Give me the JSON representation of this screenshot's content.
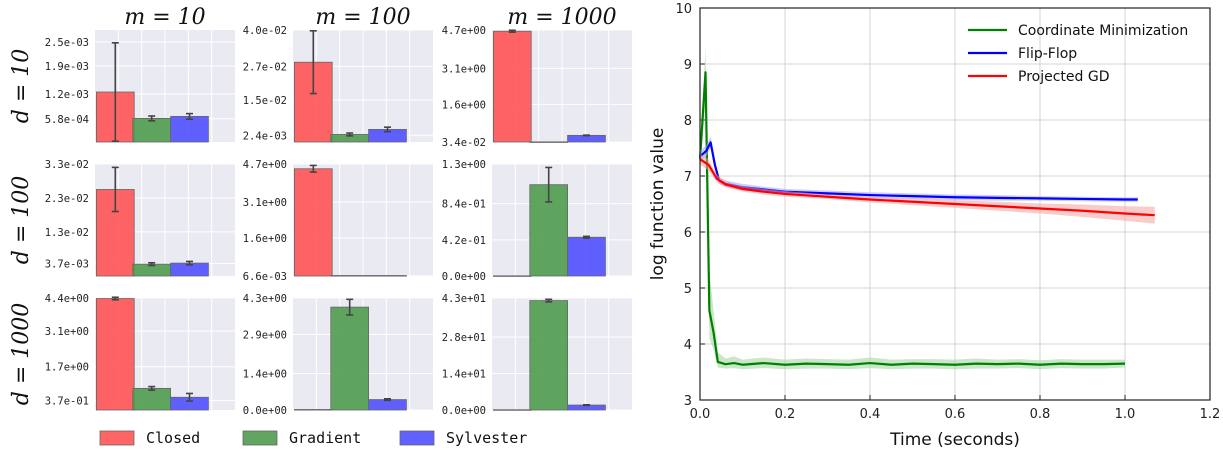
{
  "chart_data": [
    {
      "type": "bar",
      "layout": "3x3 grid of small multiples",
      "column_titles": [
        "m = 10",
        "m = 100",
        "m = 1000"
      ],
      "row_titles": [
        "d = 10",
        "d = 100",
        "d = 1000"
      ],
      "categories": [
        "Closed",
        "Gradient",
        "Sylvester"
      ],
      "colors": [
        "#ff5050",
        "#4a9a4a",
        "#4b4bff"
      ],
      "legend": {
        "placement": "bottom",
        "labels": [
          "Closed",
          "Gradient",
          "Sylvester"
        ]
      },
      "grid": true,
      "panels": [
        {
          "row": 0,
          "col": 0,
          "ylim": [
            0,
            0.0028
          ],
          "ytick_values": [
            0.00058,
            0.0012,
            0.0019,
            0.0025
          ],
          "ytick_labels": [
            "5.8e-04",
            "1.2e-03",
            "1.9e-03",
            "2.5e-03"
          ],
          "values": [
            0.00125,
            0.00059,
            0.00064
          ],
          "errors": [
            0.00123,
            6e-05,
            7e-05
          ]
        },
        {
          "row": 0,
          "col": 1,
          "ylim": [
            0,
            0.04
          ],
          "ytick_values": [
            0.0024,
            0.015,
            0.027,
            0.04
          ],
          "ytick_labels": [
            "2.4e-03",
            "1.5e-02",
            "2.7e-02",
            "4.0e-02"
          ],
          "values": [
            0.0285,
            0.0027,
            0.0045
          ],
          "errors": [
            0.0112,
            0.0005,
            0.0008
          ]
        },
        {
          "row": 0,
          "col": 2,
          "ylim": [
            0.034,
            4.7
          ],
          "ytick_values": [
            0.034,
            1.6,
            3.1,
            4.7
          ],
          "ytick_labels": [
            "3.4e-02",
            "1.6e+00",
            "3.1e+00",
            "4.7e+00"
          ],
          "values": [
            4.65,
            0.04,
            0.31
          ],
          "errors": [
            0.04,
            0.0,
            0.01
          ]
        },
        {
          "row": 1,
          "col": 0,
          "ylim": [
            0,
            0.033
          ],
          "ytick_values": [
            0.0037,
            0.013,
            0.023,
            0.033
          ],
          "ytick_labels": [
            "3.7e-03",
            "1.3e-02",
            "2.3e-02",
            "3.3e-02"
          ],
          "values": [
            0.0255,
            0.0035,
            0.0038
          ],
          "errors": [
            0.0065,
            0.0004,
            0.0005
          ]
        },
        {
          "row": 1,
          "col": 1,
          "ylim": [
            0,
            4.7
          ],
          "ytick_values": [
            0.0066,
            1.6,
            3.1,
            4.7
          ],
          "ytick_labels": [
            "6.6e-03",
            "1.6e+00",
            "3.1e+00",
            "4.7e+00"
          ],
          "values": [
            4.5,
            0.02,
            0.02
          ],
          "errors": [
            0.14,
            0.0,
            0.0
          ]
        },
        {
          "row": 1,
          "col": 2,
          "ylim": [
            0,
            1.3
          ],
          "ytick_values": [
            0.0,
            0.42,
            0.84,
            1.3
          ],
          "ytick_labels": [
            "0.0e+00",
            "4.2e-01",
            "8.4e-01",
            "1.3e+00"
          ],
          "values": [
            0.002,
            1.06,
            0.45
          ],
          "errors": [
            0.0,
            0.2,
            0.01
          ]
        },
        {
          "row": 2,
          "col": 0,
          "ylim": [
            0,
            4.4
          ],
          "ytick_values": [
            0.37,
            1.7,
            3.1,
            4.4
          ],
          "ytick_labels": [
            "3.7e-01",
            "1.7e+00",
            "3.1e+00",
            "4.4e+00"
          ],
          "values": [
            4.38,
            0.85,
            0.5
          ],
          "errors": [
            0.05,
            0.07,
            0.15
          ]
        },
        {
          "row": 2,
          "col": 1,
          "ylim": [
            0,
            4.3
          ],
          "ytick_values": [
            0.0,
            1.4,
            2.9,
            4.3
          ],
          "ytick_labels": [
            "0.0e+00",
            "1.4e+00",
            "2.9e+00",
            "4.3e+00"
          ],
          "values": [
            0.02,
            3.95,
            0.4
          ],
          "errors": [
            0.0,
            0.3,
            0.03
          ]
        },
        {
          "row": 2,
          "col": 2,
          "ylim": [
            0,
            43
          ],
          "ytick_values": [
            0.0,
            14.0,
            28.0,
            43.0
          ],
          "ytick_labels": [
            "0.0e+00",
            "1.4e+01",
            "2.8e+01",
            "4.3e+01"
          ],
          "values": [
            0.1,
            42.0,
            1.9
          ],
          "errors": [
            0.0,
            0.5,
            0.1
          ]
        }
      ]
    },
    {
      "type": "line",
      "xlabel": "Time (seconds)",
      "ylabel": "log function value",
      "xlim": [
        0,
        1.2
      ],
      "ylim": [
        3,
        10
      ],
      "xticks": [
        "0.0",
        "0.2",
        "0.4",
        "0.6",
        "0.8",
        "1.0",
        "1.2"
      ],
      "yticks": [
        "3",
        "4",
        "5",
        "6",
        "7",
        "8",
        "9",
        "10"
      ],
      "grid": true,
      "legend": {
        "placement": "top-right"
      },
      "series": [
        {
          "name": "Coordinate Minimization",
          "color": "#008000",
          "band": "#9fd49f",
          "points": [
            [
              0.0,
              7.3
            ],
            [
              0.013,
              8.85
            ],
            [
              0.022,
              4.6
            ],
            [
              0.032,
              4.2
            ],
            [
              0.042,
              3.68
            ],
            [
              0.06,
              3.64
            ],
            [
              0.08,
              3.66
            ],
            [
              0.1,
              3.63
            ],
            [
              0.15,
              3.66
            ],
            [
              0.2,
              3.63
            ],
            [
              0.25,
              3.65
            ],
            [
              0.3,
              3.64
            ],
            [
              0.35,
              3.63
            ],
            [
              0.4,
              3.66
            ],
            [
              0.45,
              3.63
            ],
            [
              0.5,
              3.65
            ],
            [
              0.55,
              3.64
            ],
            [
              0.6,
              3.63
            ],
            [
              0.65,
              3.65
            ],
            [
              0.7,
              3.64
            ],
            [
              0.75,
              3.65
            ],
            [
              0.8,
              3.63
            ],
            [
              0.85,
              3.65
            ],
            [
              0.9,
              3.64
            ],
            [
              0.95,
              3.64
            ],
            [
              1.0,
              3.65
            ]
          ],
          "upper": [
            [
              0.0,
              7.5
            ],
            [
              0.013,
              9.3
            ],
            [
              0.022,
              5.3
            ],
            [
              0.032,
              4.6
            ],
            [
              0.042,
              3.85
            ],
            [
              0.06,
              3.74
            ],
            [
              0.08,
              3.78
            ],
            [
              0.1,
              3.72
            ],
            [
              0.15,
              3.76
            ],
            [
              0.2,
              3.72
            ],
            [
              0.25,
              3.74
            ],
            [
              0.3,
              3.73
            ],
            [
              0.35,
              3.72
            ],
            [
              0.4,
              3.76
            ],
            [
              0.45,
              3.72
            ],
            [
              0.5,
              3.73
            ],
            [
              0.55,
              3.73
            ],
            [
              0.6,
              3.72
            ],
            [
              0.65,
              3.74
            ],
            [
              0.7,
              3.72
            ],
            [
              0.75,
              3.73
            ],
            [
              0.8,
              3.71
            ],
            [
              0.85,
              3.73
            ],
            [
              0.9,
              3.72
            ],
            [
              0.95,
              3.72
            ],
            [
              1.0,
              3.72
            ]
          ],
          "lower": [
            [
              0.0,
              7.1
            ],
            [
              0.013,
              8.3
            ],
            [
              0.022,
              4.1
            ],
            [
              0.032,
              3.9
            ],
            [
              0.042,
              3.58
            ],
            [
              0.06,
              3.56
            ],
            [
              0.08,
              3.57
            ],
            [
              0.1,
              3.55
            ],
            [
              0.15,
              3.57
            ],
            [
              0.2,
              3.55
            ],
            [
              0.25,
              3.56
            ],
            [
              0.3,
              3.56
            ],
            [
              0.35,
              3.55
            ],
            [
              0.4,
              3.57
            ],
            [
              0.45,
              3.55
            ],
            [
              0.5,
              3.56
            ],
            [
              0.55,
              3.56
            ],
            [
              0.6,
              3.55
            ],
            [
              0.65,
              3.56
            ],
            [
              0.7,
              3.56
            ],
            [
              0.75,
              3.57
            ],
            [
              0.8,
              3.55
            ],
            [
              0.85,
              3.57
            ],
            [
              0.9,
              3.56
            ],
            [
              0.95,
              3.56
            ],
            [
              1.0,
              3.58
            ]
          ]
        },
        {
          "name": "Flip-Flop",
          "color": "#0000ff",
          "band": "#a6a6ff",
          "points": [
            [
              0.0,
              7.35
            ],
            [
              0.015,
              7.45
            ],
            [
              0.025,
              7.6
            ],
            [
              0.035,
              7.2
            ],
            [
              0.045,
              6.92
            ],
            [
              0.06,
              6.86
            ],
            [
              0.1,
              6.8
            ],
            [
              0.15,
              6.76
            ],
            [
              0.2,
              6.72
            ],
            [
              0.3,
              6.69
            ],
            [
              0.4,
              6.66
            ],
            [
              0.5,
              6.64
            ],
            [
              0.6,
              6.62
            ],
            [
              0.7,
              6.61
            ],
            [
              0.8,
              6.6
            ],
            [
              0.9,
              6.59
            ],
            [
              1.0,
              6.58
            ],
            [
              1.03,
              6.58
            ]
          ],
          "upper": [
            [
              0.0,
              7.45
            ],
            [
              0.015,
              7.55
            ],
            [
              0.025,
              7.7
            ],
            [
              0.035,
              7.3
            ],
            [
              0.045,
              6.98
            ],
            [
              0.06,
              6.92
            ],
            [
              0.1,
              6.86
            ],
            [
              0.15,
              6.81
            ],
            [
              0.2,
              6.77
            ],
            [
              0.3,
              6.74
            ],
            [
              0.4,
              6.71
            ],
            [
              0.5,
              6.69
            ],
            [
              0.6,
              6.67
            ],
            [
              0.7,
              6.66
            ],
            [
              0.8,
              6.64
            ],
            [
              0.9,
              6.63
            ],
            [
              1.0,
              6.62
            ],
            [
              1.03,
              6.62
            ]
          ],
          "lower": [
            [
              0.0,
              7.25
            ],
            [
              0.015,
              7.35
            ],
            [
              0.025,
              7.5
            ],
            [
              0.035,
              7.1
            ],
            [
              0.045,
              6.86
            ],
            [
              0.06,
              6.8
            ],
            [
              0.1,
              6.74
            ],
            [
              0.15,
              6.71
            ],
            [
              0.2,
              6.67
            ],
            [
              0.3,
              6.64
            ],
            [
              0.4,
              6.61
            ],
            [
              0.5,
              6.59
            ],
            [
              0.6,
              6.57
            ],
            [
              0.7,
              6.56
            ],
            [
              0.8,
              6.56
            ],
            [
              0.9,
              6.55
            ],
            [
              1.0,
              6.54
            ],
            [
              1.03,
              6.54
            ]
          ]
        },
        {
          "name": "Projected GD",
          "color": "#ff0000",
          "band": "#f5a0a0",
          "points": [
            [
              0.0,
              7.3
            ],
            [
              0.02,
              7.2
            ],
            [
              0.04,
              6.95
            ],
            [
              0.06,
              6.85
            ],
            [
              0.1,
              6.77
            ],
            [
              0.15,
              6.72
            ],
            [
              0.2,
              6.68
            ],
            [
              0.3,
              6.63
            ],
            [
              0.4,
              6.58
            ],
            [
              0.5,
              6.54
            ],
            [
              0.6,
              6.5
            ],
            [
              0.7,
              6.46
            ],
            [
              0.8,
              6.42
            ],
            [
              0.9,
              6.38
            ],
            [
              1.0,
              6.33
            ],
            [
              1.07,
              6.3
            ]
          ],
          "upper": [
            [
              0.0,
              7.4
            ],
            [
              0.02,
              7.3
            ],
            [
              0.04,
              7.02
            ],
            [
              0.06,
              6.91
            ],
            [
              0.1,
              6.82
            ],
            [
              0.15,
              6.77
            ],
            [
              0.2,
              6.73
            ],
            [
              0.3,
              6.67
            ],
            [
              0.4,
              6.63
            ],
            [
              0.5,
              6.6
            ],
            [
              0.6,
              6.57
            ],
            [
              0.7,
              6.54
            ],
            [
              0.8,
              6.51
            ],
            [
              0.9,
              6.49
            ],
            [
              1.0,
              6.46
            ],
            [
              1.07,
              6.45
            ]
          ],
          "lower": [
            [
              0.0,
              7.2
            ],
            [
              0.02,
              7.1
            ],
            [
              0.04,
              6.88
            ],
            [
              0.06,
              6.8
            ],
            [
              0.1,
              6.72
            ],
            [
              0.15,
              6.67
            ],
            [
              0.2,
              6.63
            ],
            [
              0.3,
              6.59
            ],
            [
              0.4,
              6.53
            ],
            [
              0.5,
              6.48
            ],
            [
              0.6,
              6.43
            ],
            [
              0.7,
              6.38
            ],
            [
              0.8,
              6.33
            ],
            [
              0.9,
              6.27
            ],
            [
              1.0,
              6.2
            ],
            [
              1.07,
              6.15
            ]
          ]
        }
      ]
    }
  ]
}
